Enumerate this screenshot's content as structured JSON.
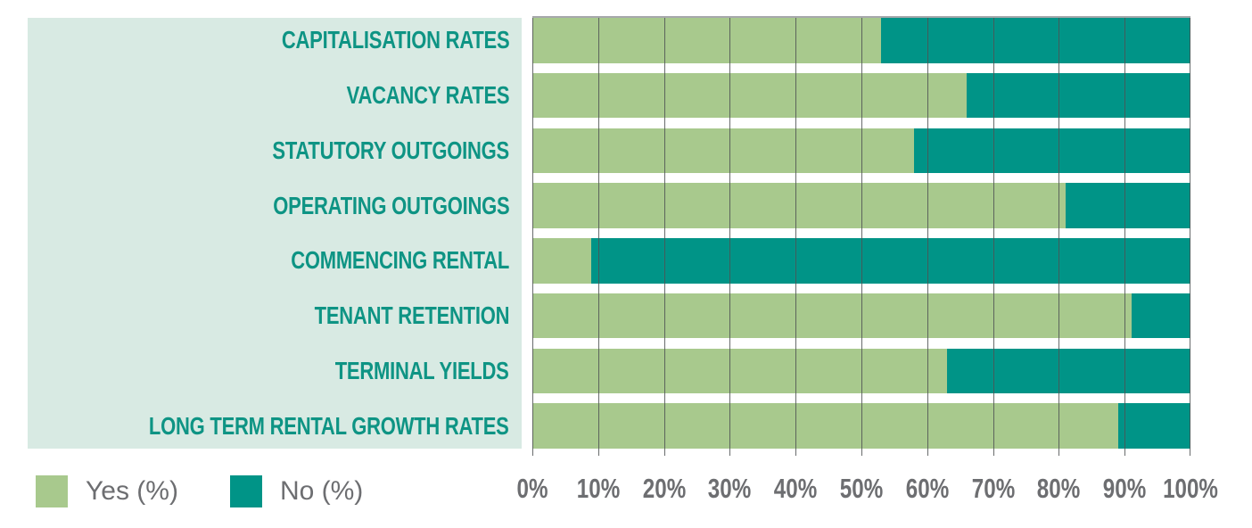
{
  "chart_data": {
    "type": "bar",
    "orientation": "horizontal",
    "stacked": true,
    "title": "",
    "xlabel": "",
    "ylabel": "",
    "categories": [
      "CAPITALISATION RATES",
      "VACANCY RATES",
      "STATUTORY OUTGOINGS",
      "OPERATING OUTGOINGS",
      "COMMENCING RENTAL",
      "TENANT RETENTION",
      "TERMINAL YIELDS",
      "LONG TERM RENTAL GROWTH RATES"
    ],
    "series": [
      {
        "name": "Yes (%)",
        "color": "#a8c98d",
        "values": [
          53,
          66,
          58,
          81,
          9,
          91,
          63,
          89
        ]
      },
      {
        "name": "No (%)",
        "color": "#009487",
        "values": [
          47,
          34,
          42,
          19,
          91,
          9,
          37,
          11
        ]
      }
    ],
    "xlim": [
      0,
      100
    ],
    "x_ticks": [
      "0%",
      "10%",
      "20%",
      "30%",
      "40%",
      "50%",
      "60%",
      "70%",
      "80%",
      "90%",
      "100%"
    ],
    "grid": "vertical",
    "legend_position": "bottom-left"
  },
  "legend": {
    "items": [
      {
        "label": "Yes (%)",
        "color": "#a8c98d"
      },
      {
        "label": "No (%)",
        "color": "#009487"
      }
    ]
  },
  "colors": {
    "panel_background": "#d8eae3",
    "category_text": "#0e9484",
    "axis_text": "#6d6e71",
    "legend_text": "#6d6e71",
    "gridline": "#4f5254",
    "plot_top_border": "#a6a8ab",
    "background": "#ffffff"
  }
}
